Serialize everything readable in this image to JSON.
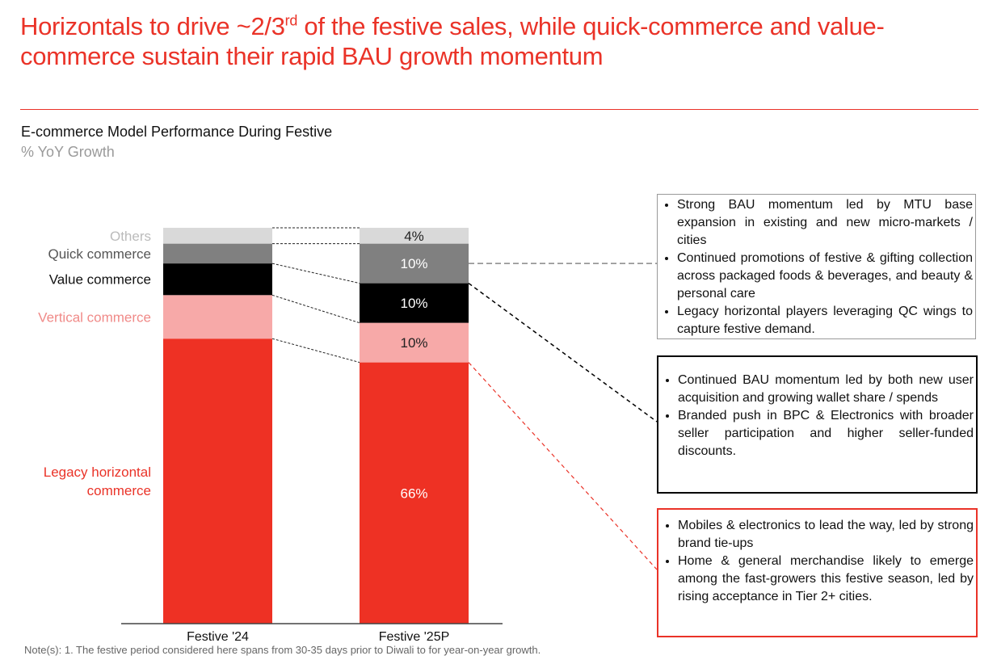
{
  "title": {
    "line_a": "Horizontals to drive ~2/3",
    "sup": "rd",
    "line_b": " of the festive sales, while quick-commerce and value-commerce sustain their rapid BAU growth momentum"
  },
  "subtitle": "E-commerce Model Performance During Festive",
  "unit_label": "% YoY Growth",
  "colors": {
    "accent": "#ea3328",
    "legacy": "#ee3124",
    "vertical": "#f7a9a8",
    "value": "#000000",
    "quick": "#808080",
    "others": "#d9d9d9"
  },
  "chart_data": {
    "type": "bar",
    "stacked": true,
    "title": "E-commerce Model Performance During Festive",
    "ylabel": "% YoY Growth",
    "categories": [
      "Festive '24",
      "Festive '25P"
    ],
    "ylim": [
      0,
      100
    ],
    "series": [
      {
        "name": "Legacy horizontal commerce",
        "values": [
          72,
          66
        ],
        "labels": [
          "",
          "66%"
        ]
      },
      {
        "name": "Vertical commerce",
        "values": [
          11,
          10
        ],
        "labels": [
          "",
          "10%"
        ]
      },
      {
        "name": "Value commerce",
        "values": [
          8,
          10
        ],
        "labels": [
          "",
          "10%"
        ]
      },
      {
        "name": "Quick commerce",
        "values": [
          5,
          10
        ],
        "labels": [
          "",
          "10%"
        ]
      },
      {
        "name": "Others",
        "values": [
          4,
          4
        ],
        "labels": [
          "",
          "4%"
        ]
      }
    ]
  },
  "callouts": [
    {
      "bullets": [
        "Strong BAU momentum led by MTU base expansion in existing and new micro-markets / cities",
        "Continued promotions of festive & gifting collection across packaged foods & beverages, and beauty & personal care",
        "Legacy horizontal players leveraging QC wings to capture festive demand."
      ]
    },
    {
      "bullets": [
        "Continued BAU momentum led by both new user acquisition and growing wallet share / spends",
        "Branded push in BPC & Electronics with broader seller participation and higher seller-funded discounts."
      ]
    },
    {
      "bullets": [
        "Mobiles & electronics to lead the way, led by strong brand tie-ups",
        "Home & general merchandise likely to emerge among the fast-growers this festive season, led by rising acceptance in Tier 2+ cities."
      ]
    }
  ],
  "note": "Note(s): 1. The festive period considered here spans from 30-35 days prior to Diwali to for year-on-year growth."
}
